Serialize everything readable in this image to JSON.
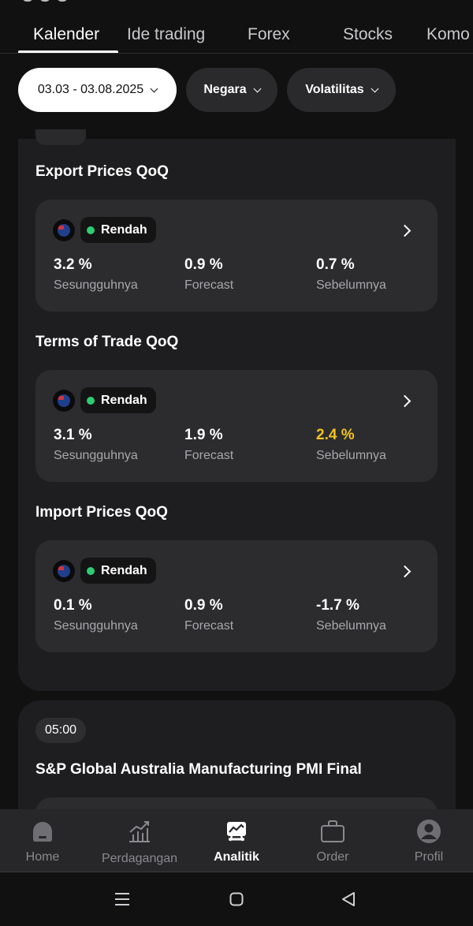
{
  "tabs": [
    {
      "label": "Kalender",
      "active": true
    },
    {
      "label": "Ide trading",
      "active": false
    },
    {
      "label": "Forex",
      "active": false
    },
    {
      "label": "Stocks",
      "active": false
    },
    {
      "label": "Komo",
      "active": false
    }
  ],
  "filters": {
    "date_range": "03.03 - 03.08.2025",
    "country": "Negara",
    "volatility": "Volatilitas"
  },
  "events": [
    {
      "title": "Export Prices QoQ",
      "country_icon": "new-zealand-flag-icon",
      "volatility": "Rendah",
      "actual": "3.2 %",
      "forecast": "0.9 %",
      "previous": "0.7 %",
      "labels": {
        "actual": "Sesungguhnya",
        "forecast": "Forecast",
        "previous": "Sebelumnya"
      }
    },
    {
      "title": "Terms of Trade QoQ",
      "country_icon": "new-zealand-flag-icon",
      "volatility": "Rendah",
      "actual": "3.1 %",
      "forecast": "1.9 %",
      "previous": "2.4 %",
      "labels": {
        "actual": "Sesungguhnya",
        "forecast": "Forecast",
        "previous": "Sebelumnya"
      }
    },
    {
      "title": "Import Prices QoQ",
      "country_icon": "new-zealand-flag-icon",
      "volatility": "Rendah",
      "actual": "0.1 %",
      "forecast": "0.9 %",
      "previous": "-1.7 %",
      "labels": {
        "actual": "Sesungguhnya",
        "forecast": "Forecast",
        "previous": "Sebelumnya"
      }
    }
  ],
  "next_group": {
    "time": "05:00",
    "title": "S&P Global Australia Manufacturing PMI Final"
  },
  "bottom_nav": [
    {
      "label": "Home",
      "icon": "home-icon",
      "active": false
    },
    {
      "label": "Perdagangan",
      "icon": "trading-chart-icon",
      "active": false
    },
    {
      "label": "Analitik",
      "icon": "analytics-icon",
      "active": true
    },
    {
      "label": "Order",
      "icon": "briefcase-icon",
      "active": false
    },
    {
      "label": "Profil",
      "icon": "profile-icon",
      "active": false
    }
  ],
  "colors": {
    "background": "#111112",
    "card": "#2c2c2e",
    "low_volatility": "#2ecc71",
    "highlight": "#f2c41b",
    "muted_text": "#a8a8ac"
  }
}
